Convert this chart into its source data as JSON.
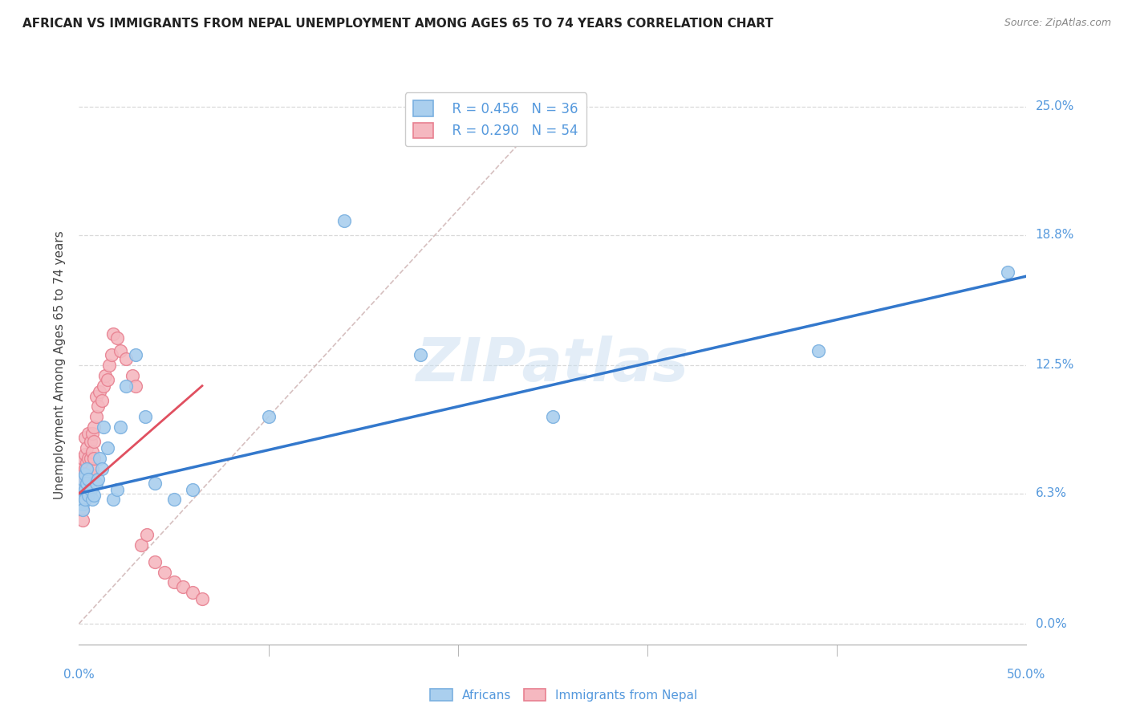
{
  "title": "AFRICAN VS IMMIGRANTS FROM NEPAL UNEMPLOYMENT AMONG AGES 65 TO 74 YEARS CORRELATION CHART",
  "source": "Source: ZipAtlas.com",
  "ylabel": "Unemployment Among Ages 65 to 74 years",
  "xlim": [
    0.0,
    0.5
  ],
  "ylim": [
    -0.01,
    0.26
  ],
  "background_color": "#ffffff",
  "grid_color": "#d0d0d0",
  "watermark": "ZIPatlas",
  "legend_R_african": "R = 0.456",
  "legend_N_african": "N = 36",
  "legend_R_nepal": "R = 0.290",
  "legend_N_nepal": "N = 54",
  "african_dot_face": "#aacfee",
  "african_dot_edge": "#7ab0e0",
  "nepal_dot_face": "#f5b8c0",
  "nepal_dot_edge": "#e88090",
  "trendline_african_color": "#3378cc",
  "trendline_nepal_color": "#e05060",
  "diagonal_color": "#ccb0b0",
  "tick_color": "#5599dd",
  "label_color": "#444444",
  "african_x": [
    0.001,
    0.001,
    0.002,
    0.002,
    0.002,
    0.003,
    0.003,
    0.003,
    0.004,
    0.004,
    0.005,
    0.005,
    0.006,
    0.007,
    0.008,
    0.009,
    0.01,
    0.011,
    0.012,
    0.013,
    0.015,
    0.018,
    0.02,
    0.022,
    0.025,
    0.03,
    0.035,
    0.04,
    0.05,
    0.06,
    0.1,
    0.14,
    0.18,
    0.25,
    0.39,
    0.49
  ],
  "african_y": [
    0.06,
    0.065,
    0.058,
    0.07,
    0.055,
    0.065,
    0.072,
    0.06,
    0.068,
    0.075,
    0.062,
    0.07,
    0.065,
    0.06,
    0.062,
    0.068,
    0.07,
    0.08,
    0.075,
    0.095,
    0.085,
    0.06,
    0.065,
    0.095,
    0.115,
    0.13,
    0.1,
    0.068,
    0.06,
    0.065,
    0.1,
    0.195,
    0.13,
    0.1,
    0.132,
    0.17
  ],
  "nepal_x": [
    0.001,
    0.001,
    0.001,
    0.001,
    0.002,
    0.002,
    0.002,
    0.002,
    0.002,
    0.003,
    0.003,
    0.003,
    0.003,
    0.003,
    0.004,
    0.004,
    0.004,
    0.005,
    0.005,
    0.005,
    0.005,
    0.006,
    0.006,
    0.006,
    0.007,
    0.007,
    0.007,
    0.008,
    0.008,
    0.008,
    0.009,
    0.009,
    0.01,
    0.011,
    0.012,
    0.013,
    0.014,
    0.015,
    0.016,
    0.017,
    0.018,
    0.02,
    0.022,
    0.025,
    0.028,
    0.03,
    0.033,
    0.036,
    0.04,
    0.045,
    0.05,
    0.055,
    0.06,
    0.065
  ],
  "nepal_y": [
    0.06,
    0.065,
    0.07,
    0.078,
    0.055,
    0.063,
    0.072,
    0.08,
    0.05,
    0.06,
    0.068,
    0.075,
    0.082,
    0.09,
    0.07,
    0.078,
    0.085,
    0.065,
    0.073,
    0.08,
    0.092,
    0.072,
    0.08,
    0.088,
    0.075,
    0.083,
    0.092,
    0.08,
    0.088,
    0.095,
    0.1,
    0.11,
    0.105,
    0.112,
    0.108,
    0.115,
    0.12,
    0.118,
    0.125,
    0.13,
    0.14,
    0.138,
    0.132,
    0.128,
    0.12,
    0.115,
    0.038,
    0.043,
    0.03,
    0.025,
    0.02,
    0.018,
    0.015,
    0.012
  ],
  "trendline_african_x0": 0.0,
  "trendline_african_y0": 0.063,
  "trendline_african_x1": 0.5,
  "trendline_african_y1": 0.168,
  "trendline_nepal_x0": 0.0,
  "trendline_nepal_y0": 0.063,
  "trendline_nepal_x1": 0.065,
  "trendline_nepal_y1": 0.115
}
